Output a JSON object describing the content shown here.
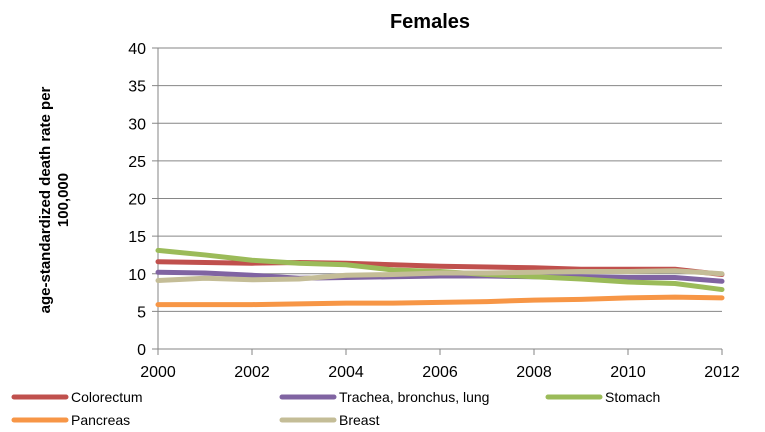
{
  "chart_data": {
    "type": "line",
    "title": "Females",
    "ylabel": "age-standardized death rate per 100,000",
    "ylabel_lines": [
      "age-standardized death rate per",
      "100,000"
    ],
    "xlabel": "",
    "x": [
      2000,
      2001,
      2002,
      2003,
      2004,
      2005,
      2006,
      2007,
      2008,
      2009,
      2010,
      2011,
      2012
    ],
    "x_ticks": [
      "2000",
      "2002",
      "2004",
      "2006",
      "2008",
      "2010",
      "2012"
    ],
    "y_ticks": [
      "0",
      "5",
      "10",
      "15",
      "20",
      "25",
      "30",
      "35",
      "40"
    ],
    "ylim": [
      0,
      40
    ],
    "xlim": [
      2000,
      2012
    ],
    "grid": true,
    "legend_position": "bottom",
    "series": [
      {
        "name": "Colorectum",
        "color": "#c0504d",
        "values": [
          11.6,
          11.5,
          11.4,
          11.5,
          11.4,
          11.2,
          11.0,
          10.9,
          10.8,
          10.6,
          10.6,
          10.6,
          9.9
        ]
      },
      {
        "name": "Trachea, bronchus, lung",
        "color": "#8064a2",
        "values": [
          10.2,
          10.1,
          9.8,
          9.4,
          9.5,
          9.6,
          9.7,
          9.7,
          9.6,
          9.6,
          9.5,
          9.5,
          9.0
        ]
      },
      {
        "name": "Stomach",
        "color": "#9bbb59",
        "values": [
          13.1,
          12.5,
          11.8,
          11.4,
          11.2,
          10.5,
          10.3,
          9.9,
          9.6,
          9.3,
          8.9,
          8.7,
          7.9
        ]
      },
      {
        "name": "Pancreas",
        "color": "#f79646",
        "values": [
          5.9,
          5.9,
          5.9,
          6.0,
          6.1,
          6.1,
          6.2,
          6.3,
          6.5,
          6.6,
          6.8,
          6.9,
          6.8
        ]
      },
      {
        "name": "Breast",
        "color": "#c4bd97",
        "values": [
          9.1,
          9.4,
          9.2,
          9.3,
          9.8,
          9.9,
          10.1,
          10.1,
          10.2,
          10.3,
          10.3,
          10.4,
          10.0
        ]
      }
    ]
  }
}
